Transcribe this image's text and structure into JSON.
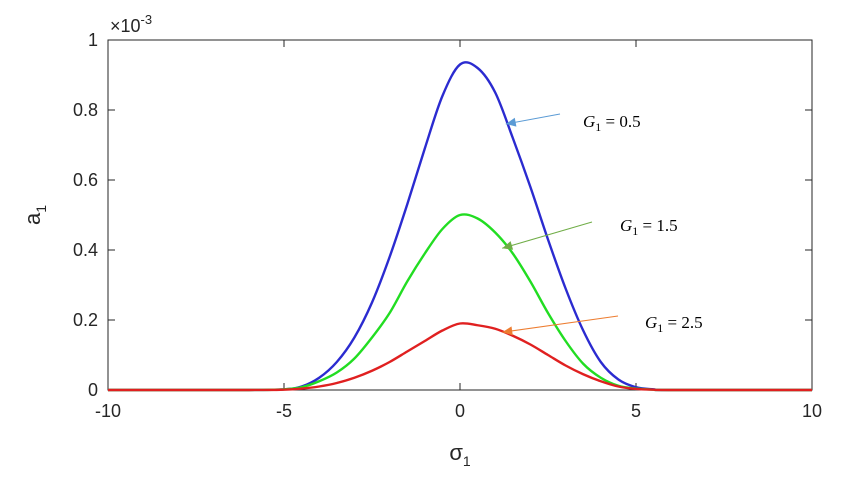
{
  "chart_data": {
    "type": "line",
    "title": "",
    "xlabel": "σ",
    "xlabel_subscript": "1",
    "ylabel": "a",
    "ylabel_subscript": "1",
    "y_multiplier": "×10",
    "y_multiplier_exponent": "-3",
    "xlim": [
      -10,
      10
    ],
    "ylim": [
      0,
      1
    ],
    "xticks": [
      -10,
      -5,
      0,
      5,
      10
    ],
    "yticks": [
      0,
      0.2,
      0.4,
      0.6,
      0.8,
      1
    ],
    "xtick_labels": [
      "-10",
      "-5",
      "0",
      "5",
      "10"
    ],
    "ytick_labels": [
      "0",
      "0.2",
      "0.4",
      "0.6",
      "0.8",
      "1"
    ],
    "grid": false,
    "legend": "none",
    "series": [
      {
        "color": "#2b2bd0",
        "x": [
          -10,
          -6,
          -5,
          -4.5,
          -4,
          -3.5,
          -3,
          -2.5,
          -2,
          -1.5,
          -1,
          -0.5,
          0,
          0.5,
          1,
          1.5,
          2,
          2.5,
          3,
          3.5,
          4,
          4.5,
          5,
          5.5,
          6,
          10
        ],
        "y": [
          0,
          0,
          0.002,
          0.01,
          0.035,
          0.08,
          0.15,
          0.25,
          0.38,
          0.53,
          0.69,
          0.84,
          0.93,
          0.92,
          0.85,
          0.72,
          0.58,
          0.43,
          0.29,
          0.17,
          0.08,
          0.03,
          0.008,
          0.002,
          0,
          0
        ]
      },
      {
        "color": "#22dd22",
        "x": [
          -10,
          -6,
          -5,
          -4.5,
          -4,
          -3.5,
          -3,
          -2.5,
          -2,
          -1.5,
          -1,
          -0.5,
          0,
          0.5,
          1,
          1.5,
          2,
          2.5,
          3,
          3.5,
          4,
          4.5,
          5,
          5.5,
          6,
          10
        ],
        "y": [
          0,
          0,
          0.002,
          0.008,
          0.025,
          0.05,
          0.09,
          0.15,
          0.22,
          0.31,
          0.39,
          0.46,
          0.5,
          0.49,
          0.45,
          0.39,
          0.31,
          0.22,
          0.14,
          0.075,
          0.035,
          0.012,
          0.004,
          0.001,
          0,
          0
        ]
      },
      {
        "color": "#e02020",
        "x": [
          -10,
          -6,
          -5,
          -4.5,
          -4,
          -3.5,
          -3,
          -2.5,
          -2,
          -1.5,
          -1,
          -0.5,
          0,
          0.5,
          1,
          1.5,
          2,
          2.5,
          3,
          3.5,
          4,
          4.5,
          5,
          5.5,
          6,
          10
        ],
        "y": [
          0,
          0,
          0.001,
          0.004,
          0.01,
          0.02,
          0.035,
          0.055,
          0.08,
          0.11,
          0.14,
          0.17,
          0.19,
          0.185,
          0.175,
          0.155,
          0.13,
          0.1,
          0.07,
          0.045,
          0.025,
          0.01,
          0.003,
          0.001,
          0,
          0
        ]
      }
    ],
    "annotations": [
      {
        "text_var": "G",
        "text_sub": "1",
        "text_rest": " = 0.5",
        "arrow_color": "#5b9bd5",
        "target": [
          1.3,
          0.76
        ]
      },
      {
        "text_var": "G",
        "text_sub": "1",
        "text_rest": " = 1.5",
        "arrow_color": "#70ad47",
        "target": [
          1.2,
          0.405
        ]
      },
      {
        "text_var": "G",
        "text_sub": "1",
        "text_rest": " = 2.5",
        "arrow_color": "#ed7d31",
        "target": [
          1.2,
          0.165
        ]
      }
    ]
  }
}
